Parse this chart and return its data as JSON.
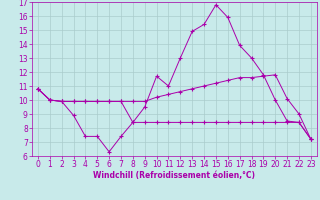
{
  "xlabel": "Windchill (Refroidissement éolien,°C)",
  "background_color": "#c8eaea",
  "grid_color": "#aacccc",
  "line_color": "#aa00aa",
  "x_hours": [
    0,
    1,
    2,
    3,
    4,
    5,
    6,
    7,
    8,
    9,
    10,
    11,
    12,
    13,
    14,
    15,
    16,
    17,
    18,
    19,
    20,
    21,
    22,
    23
  ],
  "line1": [
    10.8,
    10.0,
    9.9,
    8.9,
    7.4,
    7.4,
    6.3,
    7.4,
    8.4,
    9.5,
    11.7,
    11.0,
    13.0,
    14.9,
    15.4,
    16.8,
    15.9,
    13.9,
    13.0,
    11.8,
    10.0,
    8.5,
    8.4,
    7.2
  ],
  "line2": [
    10.8,
    10.0,
    9.9,
    9.9,
    9.9,
    9.9,
    9.9,
    9.9,
    9.9,
    9.9,
    10.2,
    10.4,
    10.6,
    10.8,
    11.0,
    11.2,
    11.4,
    11.6,
    11.6,
    11.7,
    11.8,
    10.1,
    9.0,
    7.2
  ],
  "line3": [
    10.8,
    10.0,
    9.9,
    9.9,
    9.9,
    9.9,
    9.9,
    9.9,
    8.4,
    8.4,
    8.4,
    8.4,
    8.4,
    8.4,
    8.4,
    8.4,
    8.4,
    8.4,
    8.4,
    8.4,
    8.4,
    8.4,
    8.4,
    7.2
  ],
  "ylim": [
    6,
    17
  ],
  "yticks": [
    6,
    7,
    8,
    9,
    10,
    11,
    12,
    13,
    14,
    15,
    16,
    17
  ],
  "xlabel_fontsize": 5.5,
  "tick_fontsize": 5.5
}
